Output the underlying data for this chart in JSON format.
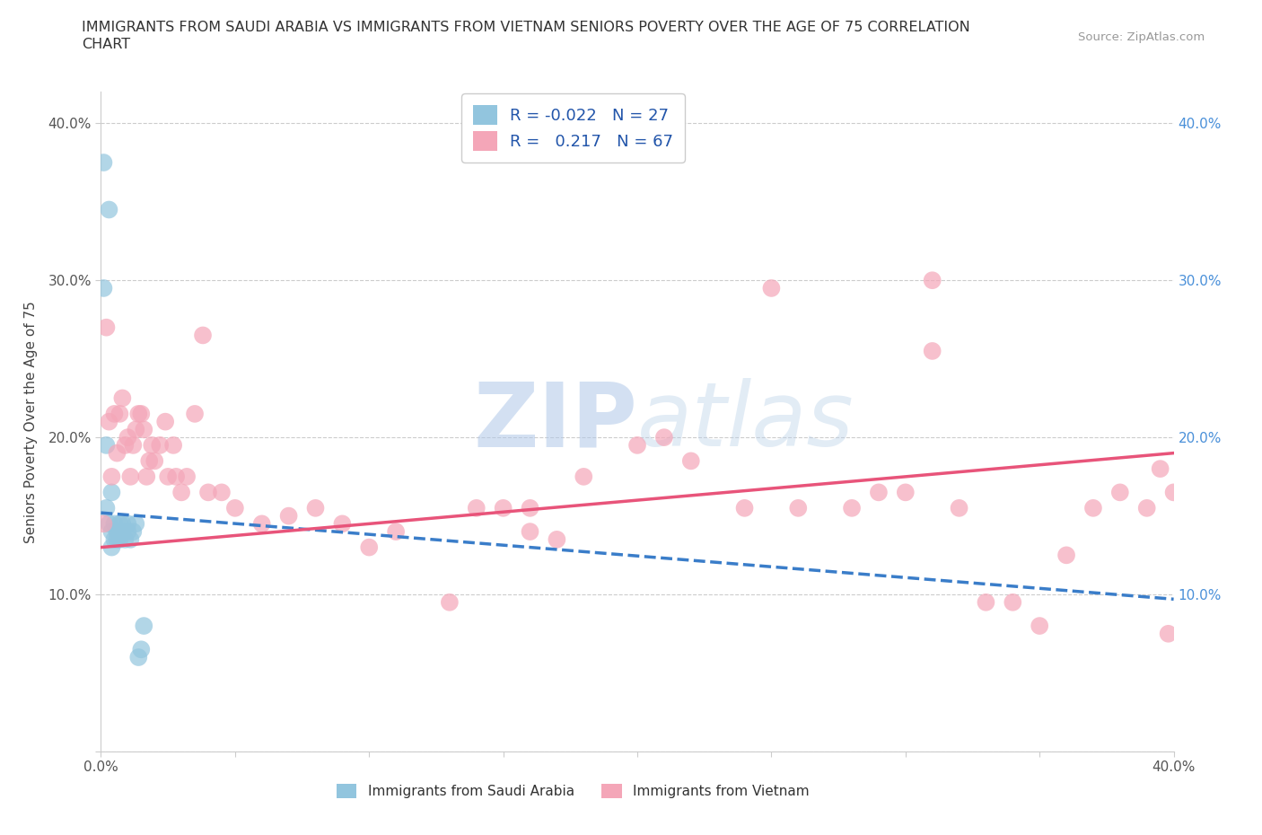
{
  "title_line1": "IMMIGRANTS FROM SAUDI ARABIA VS IMMIGRANTS FROM VIETNAM SENIORS POVERTY OVER THE AGE OF 75 CORRELATION",
  "title_line2": "CHART",
  "source": "Source: ZipAtlas.com",
  "ylabel": "Seniors Poverty Over the Age of 75",
  "xlim": [
    0.0,
    0.4
  ],
  "ylim": [
    0.0,
    0.42
  ],
  "xticks": [
    0.0,
    0.05,
    0.1,
    0.15,
    0.2,
    0.25,
    0.3,
    0.35,
    0.4
  ],
  "yticks": [
    0.0,
    0.1,
    0.2,
    0.3,
    0.4
  ],
  "legend_R_saudi": "-0.022",
  "legend_N_saudi": "27",
  "legend_R_vietnam": "0.217",
  "legend_N_vietnam": "67",
  "color_saudi": "#92C5DE",
  "color_vietnam": "#F4A6B8",
  "trendline_saudi_color": "#3A7DC9",
  "trendline_vietnam_color": "#E8547A",
  "watermark_zip": "ZIP",
  "watermark_atlas": "atlas",
  "saudi_x": [
    0.001,
    0.003,
    0.001,
    0.004,
    0.002,
    0.002,
    0.003,
    0.004,
    0.004,
    0.005,
    0.005,
    0.006,
    0.006,
    0.007,
    0.007,
    0.007,
    0.008,
    0.008,
    0.009,
    0.01,
    0.01,
    0.011,
    0.012,
    0.013,
    0.014,
    0.015,
    0.016
  ],
  "saudi_y": [
    0.375,
    0.345,
    0.295,
    0.165,
    0.195,
    0.155,
    0.145,
    0.14,
    0.13,
    0.145,
    0.135,
    0.14,
    0.135,
    0.145,
    0.14,
    0.135,
    0.145,
    0.14,
    0.135,
    0.145,
    0.14,
    0.135,
    0.14,
    0.145,
    0.06,
    0.065,
    0.08
  ],
  "vietnam_x": [
    0.001,
    0.002,
    0.003,
    0.004,
    0.005,
    0.006,
    0.007,
    0.008,
    0.009,
    0.01,
    0.011,
    0.012,
    0.013,
    0.014,
    0.015,
    0.016,
    0.017,
    0.018,
    0.019,
    0.02,
    0.022,
    0.024,
    0.025,
    0.027,
    0.028,
    0.03,
    0.032,
    0.035,
    0.038,
    0.04,
    0.045,
    0.05,
    0.06,
    0.07,
    0.08,
    0.09,
    0.1,
    0.11,
    0.13,
    0.15,
    0.16,
    0.17,
    0.18,
    0.2,
    0.21,
    0.22,
    0.24,
    0.25,
    0.26,
    0.28,
    0.3,
    0.31,
    0.32,
    0.33,
    0.34,
    0.35,
    0.36,
    0.37,
    0.38,
    0.39,
    0.395,
    0.398,
    0.4,
    0.31,
    0.29,
    0.14,
    0.16
  ],
  "vietnam_y": [
    0.145,
    0.27,
    0.21,
    0.175,
    0.215,
    0.19,
    0.215,
    0.225,
    0.195,
    0.2,
    0.175,
    0.195,
    0.205,
    0.215,
    0.215,
    0.205,
    0.175,
    0.185,
    0.195,
    0.185,
    0.195,
    0.21,
    0.175,
    0.195,
    0.175,
    0.165,
    0.175,
    0.215,
    0.265,
    0.165,
    0.165,
    0.155,
    0.145,
    0.15,
    0.155,
    0.145,
    0.13,
    0.14,
    0.095,
    0.155,
    0.155,
    0.135,
    0.175,
    0.195,
    0.2,
    0.185,
    0.155,
    0.295,
    0.155,
    0.155,
    0.165,
    0.3,
    0.155,
    0.095,
    0.095,
    0.08,
    0.125,
    0.155,
    0.165,
    0.155,
    0.18,
    0.075,
    0.165,
    0.255,
    0.165,
    0.155,
    0.14
  ],
  "trendline_saudi_x0": 0.0,
  "trendline_saudi_y0": 0.152,
  "trendline_saudi_x1": 0.4,
  "trendline_saudi_y1": 0.097,
  "trendline_vietnam_x0": 0.0,
  "trendline_vietnam_y0": 0.13,
  "trendline_vietnam_x1": 0.4,
  "trendline_vietnam_y1": 0.19
}
